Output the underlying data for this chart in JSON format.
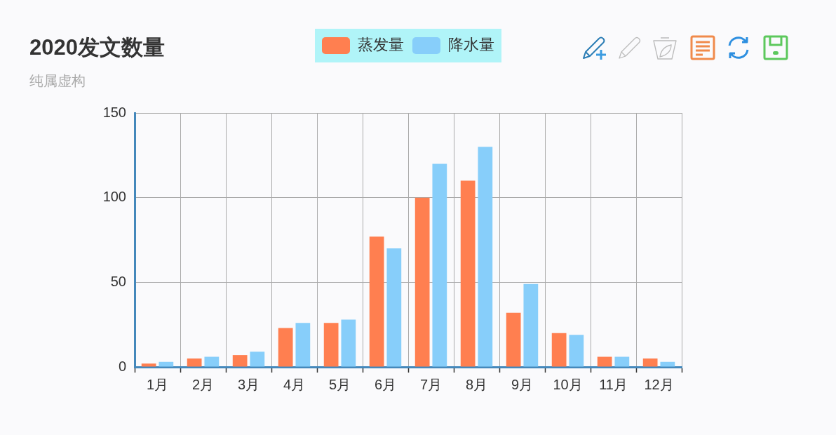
{
  "chart_data": {
    "type": "bar",
    "title": "2020发文数量",
    "subtitle": "纯属虚构",
    "categories": [
      "1月",
      "2月",
      "3月",
      "4月",
      "5月",
      "6月",
      "7月",
      "8月",
      "9月",
      "10月",
      "11月",
      "12月"
    ],
    "series": [
      {
        "name": "蒸发量",
        "color": "#ff7f50",
        "values": [
          2,
          5,
          7,
          23,
          26,
          77,
          100,
          110,
          32,
          20,
          6,
          5
        ]
      },
      {
        "name": "降水量",
        "color": "#87cefa",
        "values": [
          3,
          6,
          9,
          26,
          28,
          70,
          120,
          130,
          49,
          19,
          6,
          3
        ]
      }
    ],
    "ylim": [
      0,
      150
    ],
    "yticks": [
      0,
      50,
      100,
      150
    ],
    "grid": true,
    "legend": "top"
  }
}
